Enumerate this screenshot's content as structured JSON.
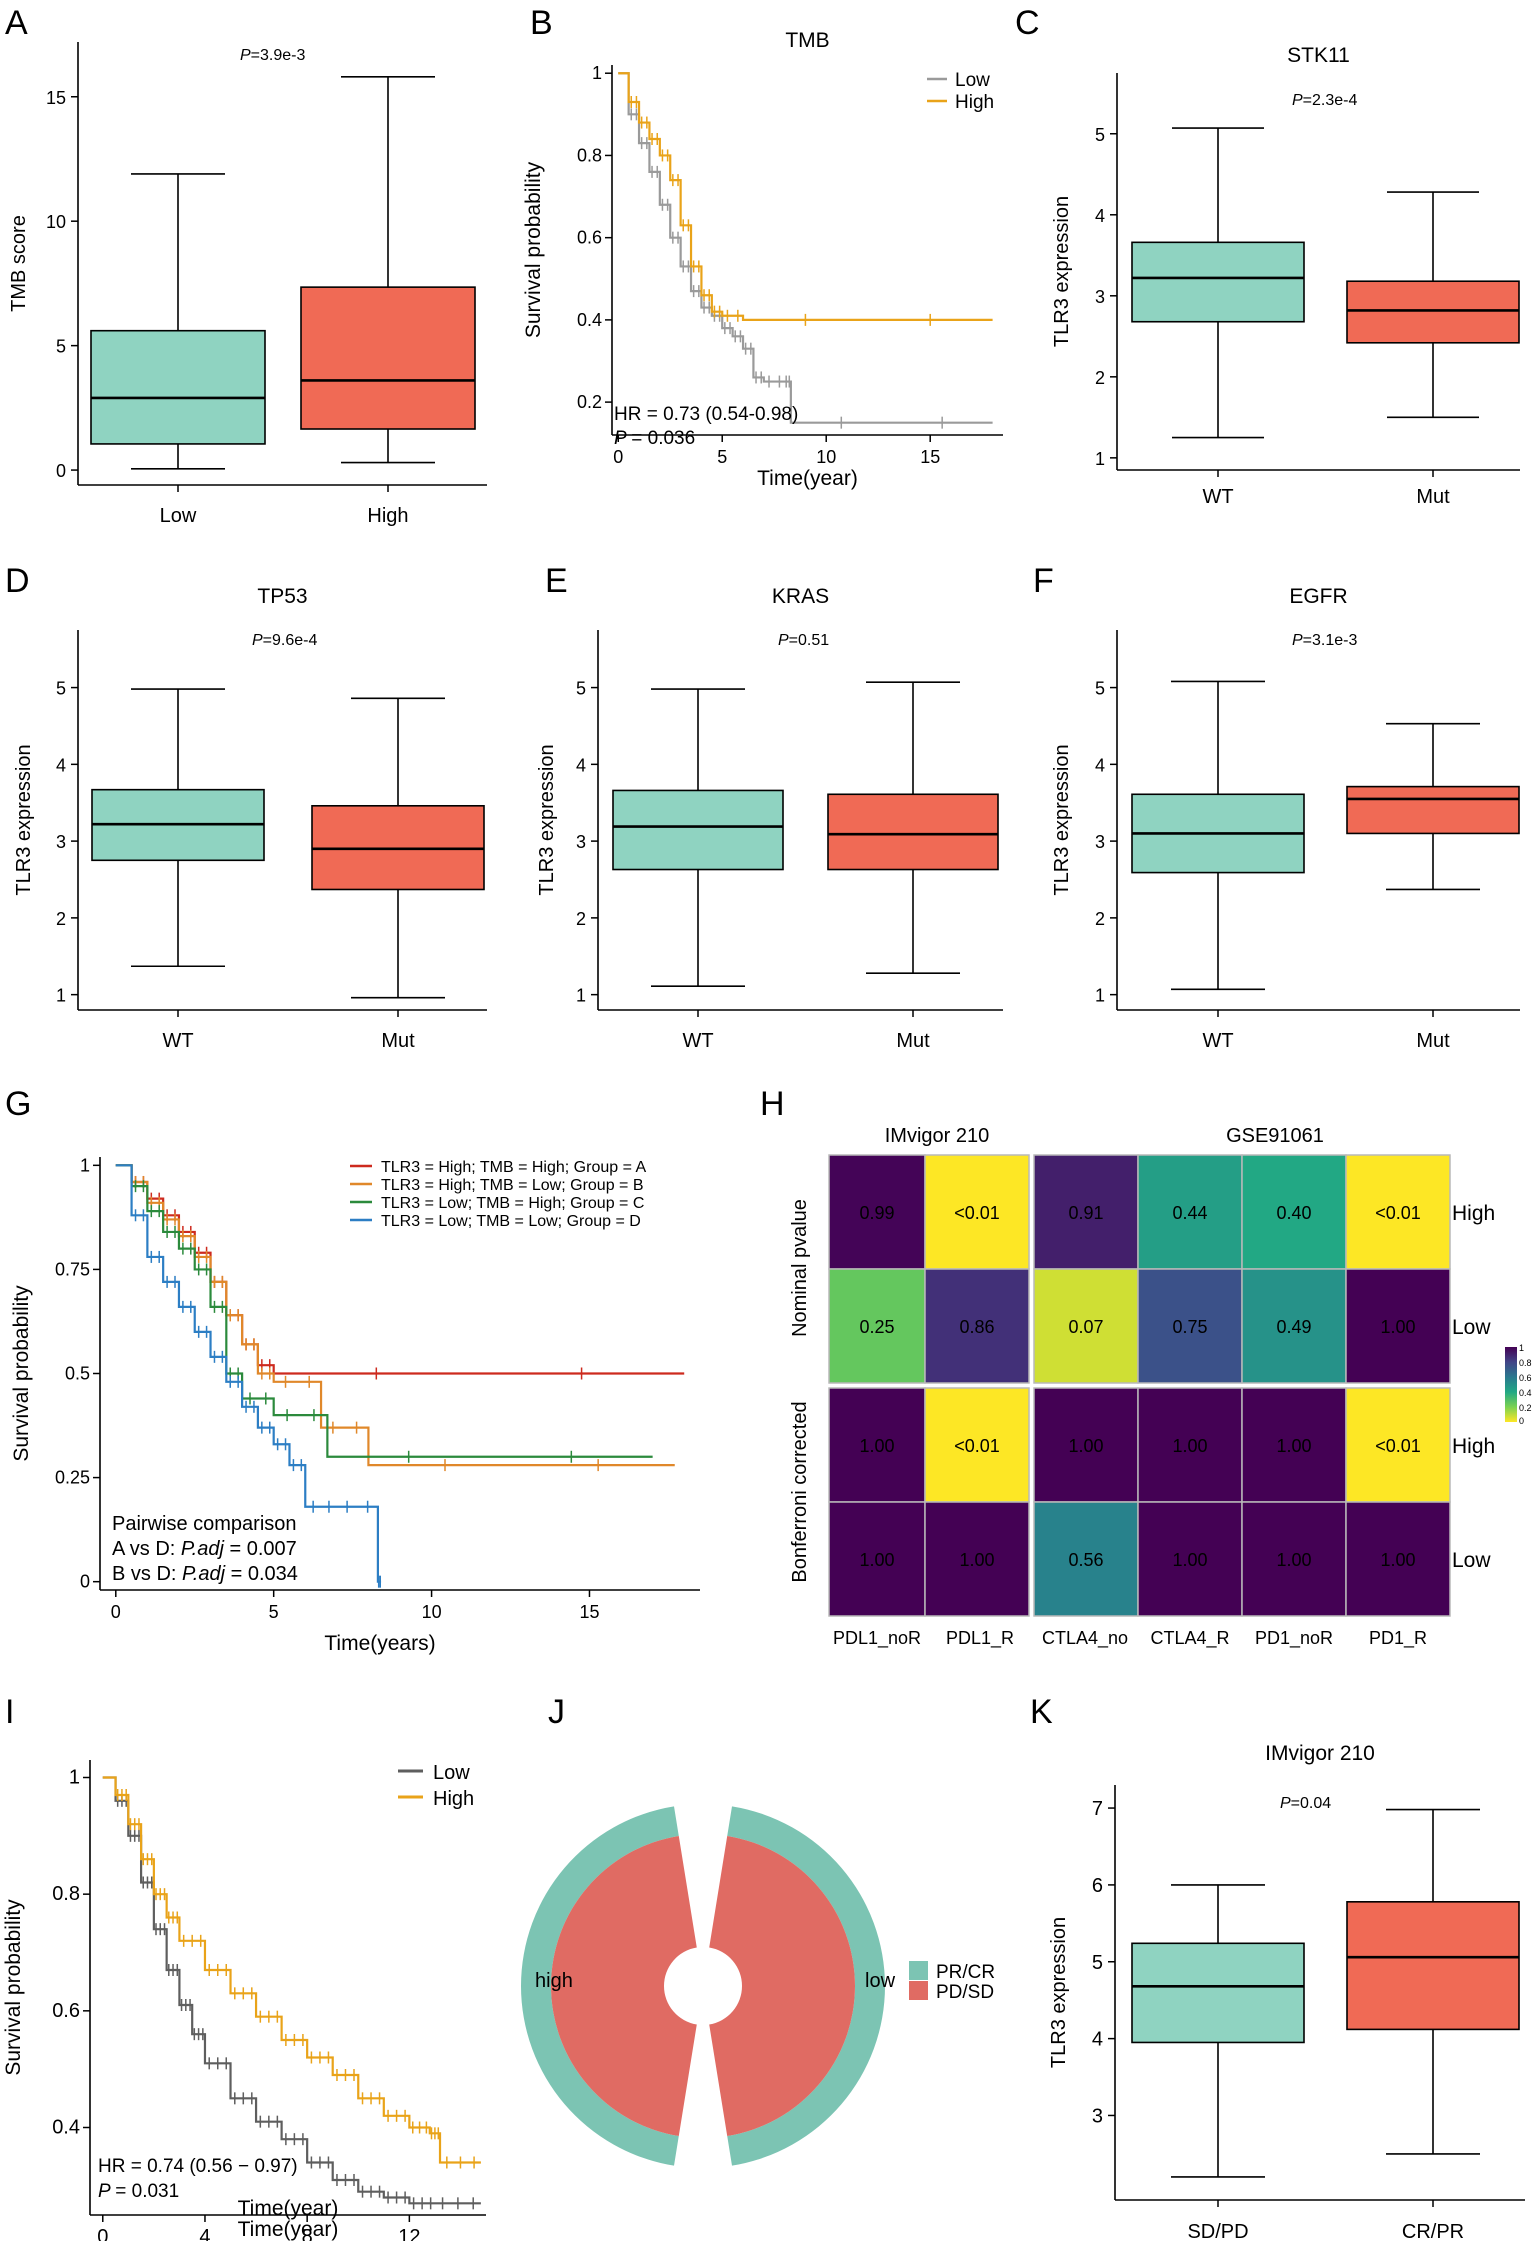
{
  "colors": {
    "teal": "#8fd3c1",
    "red": "#f06a55",
    "gray": "#9a9a9a",
    "orange": "#e9a319",
    "darkgray": "#5e5e5e",
    "km_red": "#cd2a1e",
    "km_orange": "#e0882a",
    "km_green": "#2b8a3c",
    "km_blue": "#2c7ec4",
    "donut_teal": "#7cc4b3",
    "donut_red": "#e06b63"
  },
  "chart_data": [
    {
      "id": "A",
      "panel": "A",
      "type": "box",
      "title": "",
      "pvalue": "=3.9e-3",
      "ylabel": "TMB score",
      "xlabel": "",
      "ylim": [
        -0.6,
        17.2
      ],
      "yticks": [
        0,
        5,
        10,
        15
      ],
      "categories": [
        "Low",
        "High"
      ],
      "boxes": [
        {
          "min": 0.05,
          "q1": 1.05,
          "median": 2.9,
          "q3": 5.6,
          "max": 11.9
        },
        {
          "min": 0.3,
          "q1": 1.65,
          "median": 3.6,
          "q3": 7.35,
          "max": 15.8
        }
      ]
    },
    {
      "id": "B",
      "panel": "B",
      "type": "line",
      "title": "TMB",
      "xlabel": "Time(year)",
      "ylabel": "Survival probability",
      "xlim": [
        -0.3,
        18.5
      ],
      "ylim": [
        0.12,
        1.02
      ],
      "xticks": [
        0,
        5,
        10,
        15
      ],
      "yticks": [
        0.2,
        0.4,
        0.6,
        0.8,
        1.0
      ],
      "legend": [
        "Low",
        "High"
      ],
      "annotation": [
        "HR = 0.73 (0.54-0.98)",
        "= 0.036"
      ],
      "series": [
        {
          "name": "Low",
          "color": "gray",
          "x": [
            0,
            0.5,
            1,
            1.5,
            2,
            2.5,
            3,
            3.5,
            4,
            4.5,
            5,
            5.5,
            6,
            6.5,
            7,
            8,
            8.3,
            18
          ],
          "y": [
            1.0,
            0.9,
            0.83,
            0.76,
            0.68,
            0.6,
            0.53,
            0.47,
            0.43,
            0.41,
            0.38,
            0.36,
            0.33,
            0.26,
            0.25,
            0.25,
            0.15,
            0.15
          ]
        },
        {
          "name": "High",
          "color": "orange",
          "x": [
            0,
            0.5,
            1,
            1.5,
            2,
            2.5,
            3,
            3.5,
            4,
            4.5,
            5,
            6,
            18
          ],
          "y": [
            1.0,
            0.93,
            0.88,
            0.84,
            0.8,
            0.74,
            0.63,
            0.53,
            0.46,
            0.42,
            0.41,
            0.4,
            0.4
          ]
        }
      ]
    },
    {
      "id": "C",
      "panel": "C",
      "type": "box",
      "title": "STK11",
      "pvalue": "=2.3e-4",
      "ylabel": "TLR3 expression",
      "xlabel": "",
      "ylim": [
        0.85,
        5.75
      ],
      "yticks": [
        1,
        2,
        3,
        4,
        5
      ],
      "categories": [
        "WT",
        "Mut"
      ],
      "boxes": [
        {
          "min": 1.25,
          "q1": 2.68,
          "median": 3.22,
          "q3": 3.66,
          "max": 5.07
        },
        {
          "min": 1.5,
          "q1": 2.42,
          "median": 2.82,
          "q3": 3.18,
          "max": 4.28
        }
      ]
    },
    {
      "id": "D",
      "panel": "D",
      "type": "box",
      "title": "TP53",
      "pvalue": "=9.6e-4",
      "ylabel": "TLR3 expression",
      "xlabel": "",
      "ylim": [
        0.8,
        5.75
      ],
      "yticks": [
        1,
        2,
        3,
        4,
        5
      ],
      "categories": [
        "WT",
        "Mut"
      ],
      "boxes": [
        {
          "min": 1.37,
          "q1": 2.75,
          "median": 3.22,
          "q3": 3.67,
          "max": 4.98
        },
        {
          "min": 0.96,
          "q1": 2.37,
          "median": 2.9,
          "q3": 3.46,
          "max": 4.86
        }
      ]
    },
    {
      "id": "E",
      "panel": "E",
      "type": "box",
      "title": "KRAS",
      "pvalue": "=0.51",
      "ylabel": "TLR3 expression",
      "xlabel": "",
      "ylim": [
        0.8,
        5.75
      ],
      "yticks": [
        1,
        2,
        3,
        4,
        5
      ],
      "categories": [
        "WT",
        "Mut"
      ],
      "boxes": [
        {
          "min": 1.11,
          "q1": 2.63,
          "median": 3.19,
          "q3": 3.66,
          "max": 4.98
        },
        {
          "min": 1.28,
          "q1": 2.63,
          "median": 3.09,
          "q3": 3.61,
          "max": 5.07
        }
      ]
    },
    {
      "id": "F",
      "panel": "F",
      "type": "box",
      "title": "EGFR",
      "pvalue": "=3.1e-3",
      "ylabel": "TLR3 expression",
      "xlabel": "",
      "ylim": [
        0.8,
        5.75
      ],
      "yticks": [
        1,
        2,
        3,
        4,
        5
      ],
      "categories": [
        "WT",
        "Mut"
      ],
      "boxes": [
        {
          "min": 1.07,
          "q1": 2.59,
          "median": 3.1,
          "q3": 3.61,
          "max": 5.08
        },
        {
          "min": 2.37,
          "q1": 3.1,
          "median": 3.55,
          "q3": 3.71,
          "max": 4.53
        }
      ]
    },
    {
      "id": "G",
      "panel": "G",
      "type": "line",
      "title": "",
      "xlabel": "Time(years)",
      "ylabel": "Survival probability",
      "xlim": [
        -0.5,
        18.5
      ],
      "ylim": [
        -0.02,
        1.02
      ],
      "xticks": [
        0,
        5,
        10,
        15
      ],
      "yticks": [
        0.0,
        0.25,
        0.5,
        0.75,
        1.0
      ],
      "legend": [
        "TLR3 = High; TMB = High; Group = A",
        "TLR3 = High; TMB = Low;  Group = B",
        "TLR3 = Low;  TMB = High; Group = C",
        "TLR3 = Low;  TMB = Low;  Group = D"
      ],
      "annotation": [
        "Pairwise comparison",
        "A vs D: ",
        ".adj",
        " = 0.007",
        "B vs D: ",
        " = 0.034"
      ],
      "series": [
        {
          "name": "A",
          "color": "km_red",
          "x": [
            0,
            0.5,
            1,
            1.5,
            2,
            2.5,
            3,
            3.5,
            4,
            4.5,
            5,
            18
          ],
          "y": [
            1.0,
            0.96,
            0.92,
            0.88,
            0.84,
            0.79,
            0.72,
            0.64,
            0.57,
            0.52,
            0.5,
            0.5
          ]
        },
        {
          "name": "B",
          "color": "km_orange",
          "x": [
            0,
            0.5,
            1,
            1.5,
            2,
            2.5,
            3,
            3.5,
            4,
            4.5,
            5,
            6.5,
            8,
            17.7
          ],
          "y": [
            1.0,
            0.96,
            0.91,
            0.87,
            0.83,
            0.78,
            0.72,
            0.64,
            0.57,
            0.5,
            0.48,
            0.37,
            0.28,
            0.28
          ]
        },
        {
          "name": "C",
          "color": "km_green",
          "x": [
            0,
            0.5,
            1,
            1.5,
            2,
            2.5,
            3,
            3.5,
            4,
            5,
            6.7,
            17
          ],
          "y": [
            1.0,
            0.95,
            0.89,
            0.84,
            0.8,
            0.75,
            0.66,
            0.5,
            0.44,
            0.4,
            0.3,
            0.3
          ]
        },
        {
          "name": "D",
          "color": "km_blue",
          "x": [
            0,
            0.5,
            1,
            1.5,
            2,
            2.5,
            3,
            3.5,
            4,
            4.5,
            5,
            5.5,
            6,
            7,
            8.3,
            8.4
          ],
          "y": [
            1.0,
            0.88,
            0.78,
            0.72,
            0.66,
            0.6,
            0.54,
            0.48,
            0.42,
            0.37,
            0.33,
            0.28,
            0.18,
            0.18,
            0.0,
            0.0
          ]
        }
      ]
    },
    {
      "id": "H",
      "panel": "H",
      "type": "heatmap",
      "title": "",
      "group_titles": [
        "IMvigor 210",
        "GSE91061"
      ],
      "columns": [
        "PDL1_noR",
        "PDL1_R",
        "CTLA4_no",
        "CTLA4_R",
        "PD1_noR",
        "PD1_R"
      ],
      "row_groups": [
        "Nominal pvalue",
        "Bonferroni corrected"
      ],
      "rows": [
        "High",
        "Low",
        "High",
        "Low"
      ],
      "cells": [
        [
          "0.99",
          "<0.01",
          "0.91",
          "0.44",
          "0.40",
          "<0.01"
        ],
        [
          "0.25",
          "0.86",
          "0.07",
          "0.75",
          "0.49",
          "1.00"
        ],
        [
          "1.00",
          "<0.01",
          "1.00",
          "1.00",
          "1.00",
          "<0.01"
        ],
        [
          "1.00",
          "1.00",
          "0.56",
          "1.00",
          "1.00",
          "1.00"
        ]
      ],
      "values": [
        [
          0.99,
          0.0,
          0.91,
          0.44,
          0.4,
          0.0
        ],
        [
          0.25,
          0.86,
          0.07,
          0.75,
          0.49,
          1.0
        ],
        [
          1.0,
          0.0,
          1.0,
          1.0,
          1.0,
          0.0
        ],
        [
          1.0,
          1.0,
          0.56,
          1.0,
          1.0,
          1.0
        ]
      ],
      "colorbar_ticks": [
        "1",
        "0.8",
        "0.6",
        "0.4",
        "0.2",
        "0"
      ]
    },
    {
      "id": "I",
      "panel": "I",
      "type": "line",
      "title": "",
      "xlabel": "Time(year)",
      "ylabel": "Survival probability",
      "xlim": [
        -0.5,
        15
      ],
      "ylim": [
        0.25,
        1.03
      ],
      "xticks": [
        0,
        4,
        8,
        12
      ],
      "yticks": [
        0.4,
        0.6,
        0.8,
        1.0
      ],
      "legend": [
        "Low",
        "High"
      ],
      "annotation": [
        "HR = 0.74 (0.56 − 0.97)",
        "= 0.031"
      ],
      "series": [
        {
          "name": "Low",
          "color": "darkgray",
          "x": [
            0,
            0.5,
            1,
            1.5,
            2,
            2.5,
            3,
            3.5,
            4,
            5,
            6,
            7,
            8,
            9,
            10,
            11,
            12,
            13,
            14.8
          ],
          "y": [
            1.0,
            0.96,
            0.9,
            0.82,
            0.74,
            0.67,
            0.61,
            0.56,
            0.51,
            0.45,
            0.41,
            0.38,
            0.34,
            0.31,
            0.29,
            0.28,
            0.27,
            0.27,
            0.27
          ]
        },
        {
          "name": "High",
          "color": "orange",
          "x": [
            0,
            0.5,
            1,
            1.5,
            2,
            2.5,
            3,
            4,
            5,
            6,
            7,
            8,
            9,
            10,
            11,
            12,
            12.8,
            13.2,
            14.8
          ],
          "y": [
            1.0,
            0.97,
            0.92,
            0.86,
            0.8,
            0.76,
            0.72,
            0.67,
            0.63,
            0.59,
            0.55,
            0.52,
            0.49,
            0.45,
            0.42,
            0.4,
            0.39,
            0.34,
            0.34
          ]
        }
      ]
    },
    {
      "id": "J",
      "panel": "J",
      "type": "pie",
      "title": "",
      "groups": [
        "high",
        "low"
      ],
      "legend": [
        "PR/CR",
        "PD/SD"
      ],
      "slices": [
        {
          "group": "high",
          "PR_CR": 0.25,
          "PD_SD": 0.75
        },
        {
          "group": "low",
          "PR_CR": 0.15,
          "PD_SD": 0.85
        }
      ]
    },
    {
      "id": "K",
      "panel": "K",
      "type": "box",
      "title": "IMvigor 210",
      "pvalue": "=0.04",
      "ylabel": "TLR3 expression",
      "xlabel": "",
      "ylim": [
        1.9,
        7.3
      ],
      "yticks": [
        3,
        4,
        5,
        6,
        7
      ],
      "categories": [
        "SD/PD",
        "CR/PR"
      ],
      "boxes": [
        {
          "min": 2.2,
          "q1": 3.95,
          "median": 4.68,
          "q3": 5.24,
          "max": 6.0
        },
        {
          "min": 2.5,
          "q1": 4.12,
          "median": 5.06,
          "q3": 5.78,
          "max": 6.98
        }
      ]
    }
  ]
}
